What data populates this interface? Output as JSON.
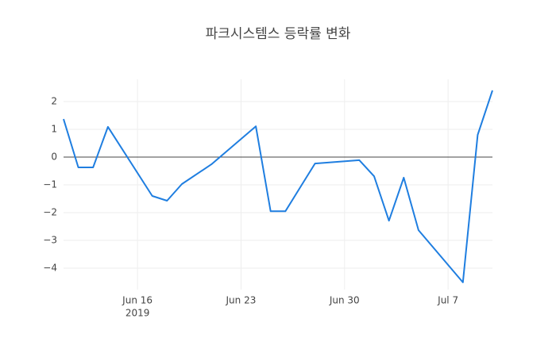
{
  "chart_data": {
    "type": "line",
    "title": "파크시스템스 등락률 변화",
    "x": [
      "2019-06-11",
      "2019-06-12",
      "2019-06-13",
      "2019-06-14",
      "2019-06-17",
      "2019-06-18",
      "2019-06-19",
      "2019-06-21",
      "2019-06-24",
      "2019-06-25",
      "2019-06-26",
      "2019-06-28",
      "2019-07-01",
      "2019-07-02",
      "2019-07-03",
      "2019-07-04",
      "2019-07-05",
      "2019-07-08",
      "2019-07-09",
      "2019-07-10"
    ],
    "series": [
      {
        "color": "#1f7ee0",
        "values": [
          1.37,
          -0.37,
          -0.37,
          1.09,
          -1.4,
          -1.57,
          -0.97,
          -0.26,
          1.11,
          -1.95,
          -1.95,
          -0.23,
          -0.11,
          -0.69,
          -2.29,
          -0.74,
          -2.63,
          -4.51,
          0.8,
          2.4
        ]
      }
    ],
    "xlim": [
      "2019-06-11",
      "2019-07-10"
    ],
    "xticks": [
      {
        "value": "2019-06-16",
        "label": "Jun 16"
      },
      {
        "value": "2019-06-23",
        "label": "Jun 23"
      },
      {
        "value": "2019-06-30",
        "label": "Jun 30"
      },
      {
        "value": "2019-07-07",
        "label": "Jul 7"
      }
    ],
    "x_year_label": "2019",
    "ylim": [
      -4.77,
      2.8
    ],
    "yticks": [
      {
        "value": -4,
        "label": "−4"
      },
      {
        "value": -3,
        "label": "−3"
      },
      {
        "value": -2,
        "label": "−2"
      },
      {
        "value": -1,
        "label": "−1"
      },
      0,
      1,
      2
    ],
    "grid": true,
    "zero_line": true
  }
}
